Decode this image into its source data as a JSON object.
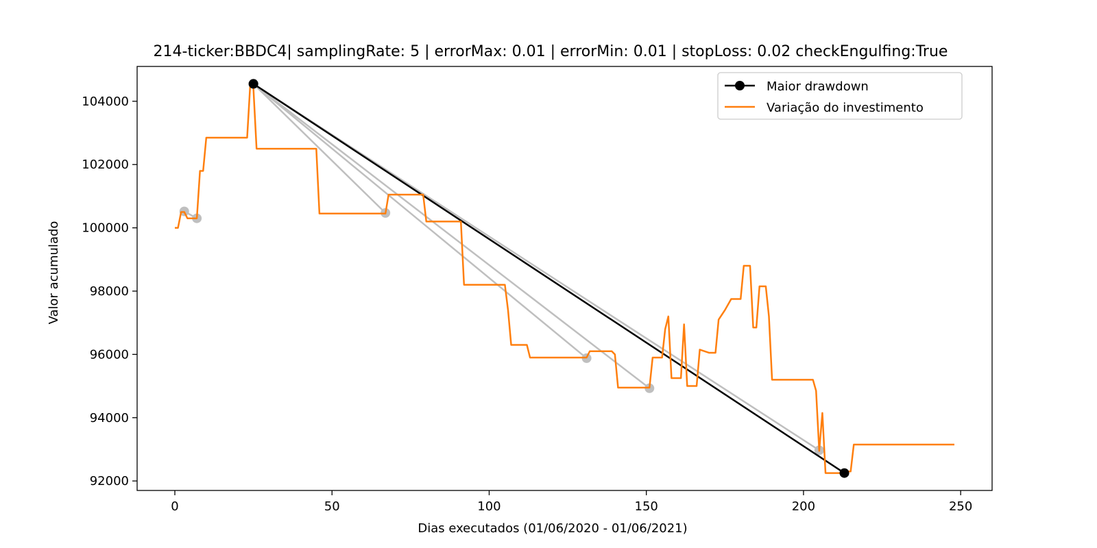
{
  "chart_data": {
    "type": "line",
    "title": "214-ticker:BBDC4| samplingRate: 5 | errorMax: 0.01 | errorMin: 0.01 | stopLoss: 0.02 checkEngulfing:True",
    "xlabel": "Dias executados (01/06/2020 - 01/06/2021)",
    "ylabel": "Valor acumulado",
    "xlim": [
      -12,
      260
    ],
    "ylim": [
      91700,
      105100
    ],
    "xticks": [
      0,
      50,
      100,
      150,
      200,
      250
    ],
    "yticks": [
      92000,
      94000,
      96000,
      98000,
      100000,
      102000,
      104000
    ],
    "grid": false,
    "legend_position": "top-right",
    "colors": {
      "investment": "#ff7f0e",
      "drawdown": "#000000",
      "secondary": "#bfbfbf"
    },
    "series": [
      {
        "name": "Variação do investimento",
        "x": [
          0,
          1,
          2,
          3,
          4,
          5,
          6,
          7,
          8,
          9,
          10,
          11,
          20,
          23,
          24,
          25,
          26,
          27,
          40,
          45,
          46,
          66,
          67,
          68,
          70,
          79,
          80,
          85,
          91,
          92,
          100,
          105,
          106,
          107,
          112,
          113,
          130,
          131,
          132,
          139,
          140,
          141,
          150,
          151,
          152,
          155,
          156,
          157,
          158,
          159,
          160,
          161,
          162,
          163,
          164,
          165,
          166,
          167,
          170,
          172,
          173,
          175,
          177,
          180,
          181,
          183,
          184,
          185,
          186,
          187,
          188,
          189,
          190,
          200,
          203,
          204,
          205,
          206,
          207,
          210,
          213,
          214,
          215,
          216,
          217,
          230,
          248
        ],
        "y": [
          100000,
          100000,
          100500,
          100500,
          100300,
          100300,
          100300,
          100300,
          101800,
          101800,
          102850,
          102850,
          102850,
          102850,
          104550,
          104400,
          102500,
          102500,
          102500,
          102500,
          100450,
          100450,
          100450,
          101050,
          101050,
          101050,
          100200,
          100200,
          100200,
          98200,
          98200,
          98200,
          97400,
          96300,
          96300,
          95900,
          95900,
          95900,
          96100,
          96100,
          96000,
          94950,
          94950,
          94950,
          95900,
          95900,
          96800,
          97200,
          95250,
          95250,
          95250,
          95250,
          96950,
          95000,
          95000,
          95000,
          95000,
          96150,
          96050,
          96050,
          97100,
          97400,
          97750,
          97750,
          98800,
          98800,
          96850,
          96850,
          98150,
          98150,
          98150,
          97200,
          95200,
          95200,
          95200,
          94850,
          92950,
          94150,
          92250,
          92250,
          92250,
          92300,
          92300,
          93150,
          93150,
          93150,
          93150
        ]
      },
      {
        "name": "Maior drawdown",
        "x": [
          25,
          213
        ],
        "y": [
          104550,
          92250
        ]
      }
    ],
    "secondary_drawdowns": [
      {
        "x": [
          3,
          7
        ],
        "y": [
          100520,
          100300
        ]
      },
      {
        "x": [
          25,
          67
        ],
        "y": [
          104550,
          100470
        ]
      },
      {
        "x": [
          25,
          131
        ],
        "y": [
          104550,
          95880
        ]
      },
      {
        "x": [
          25,
          151
        ],
        "y": [
          104550,
          94930
        ]
      },
      {
        "x": [
          25,
          205
        ],
        "y": [
          104550,
          92970
        ]
      }
    ]
  }
}
